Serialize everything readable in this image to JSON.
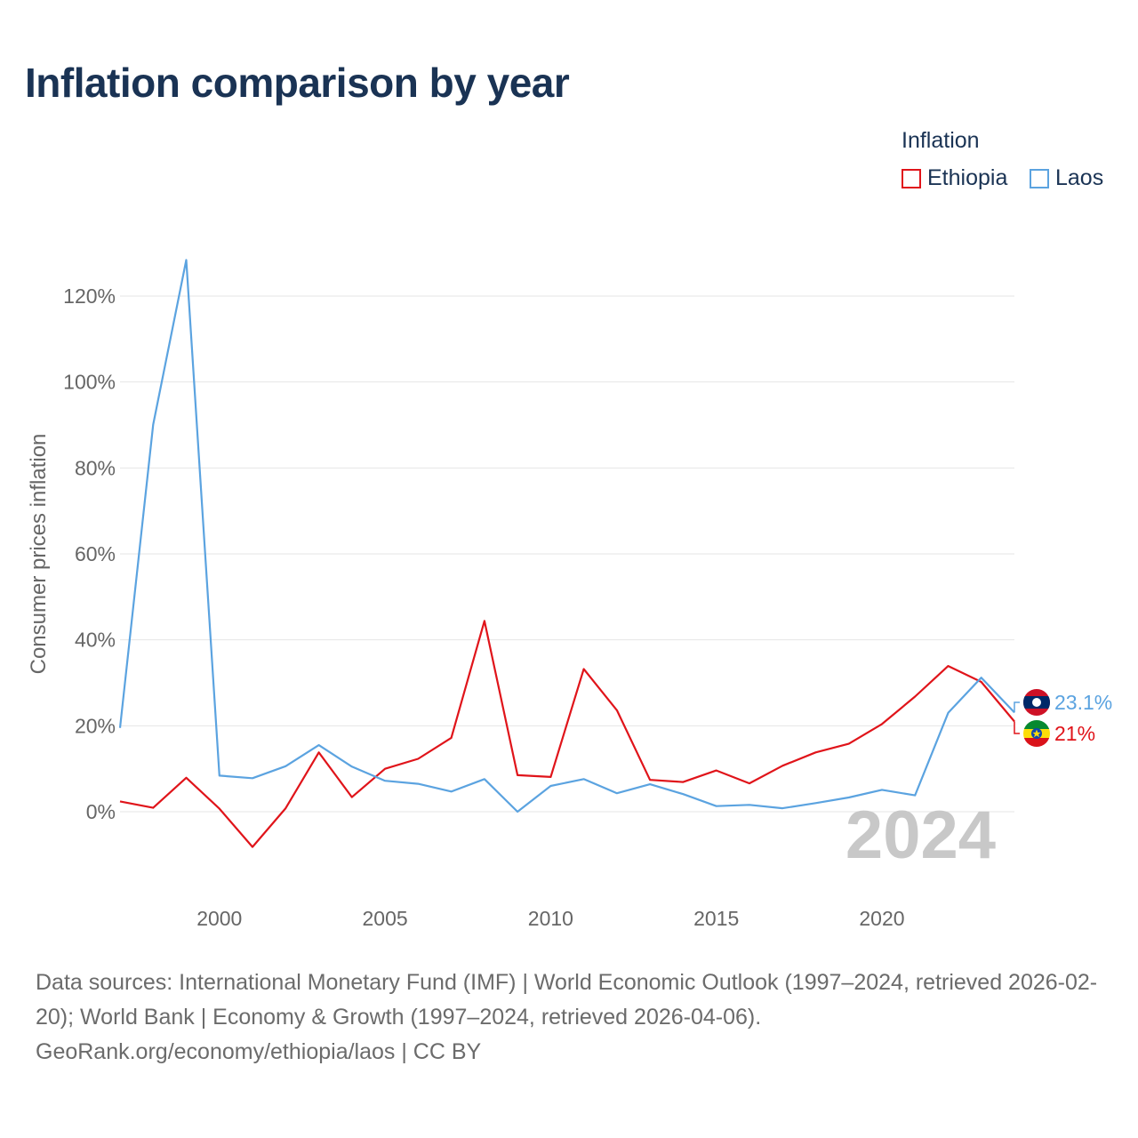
{
  "title": "Inflation comparison by year",
  "legend": {
    "title": "Inflation",
    "items": [
      {
        "label": "Ethiopia",
        "color": "#e0141a"
      },
      {
        "label": "Laos",
        "color": "#5ba3e0"
      }
    ]
  },
  "chart_data": {
    "type": "line",
    "title": "Inflation comparison by year",
    "xlabel": "",
    "ylabel": "Consumer prices inflation",
    "xlim": [
      1997,
      2024
    ],
    "ylim": [
      -20,
      140
    ],
    "x_ticks": [
      2000,
      2005,
      2010,
      2015,
      2020
    ],
    "y_ticks": [
      0,
      20,
      40,
      60,
      80,
      100,
      120
    ],
    "y_tick_labels": [
      "0%",
      "20%",
      "40%",
      "60%",
      "80%",
      "100%",
      "120%"
    ],
    "grid": true,
    "legend_position": "top-right",
    "x": [
      1997,
      1998,
      1999,
      2000,
      2001,
      2002,
      2003,
      2004,
      2005,
      2006,
      2007,
      2008,
      2009,
      2010,
      2011,
      2012,
      2013,
      2014,
      2015,
      2016,
      2017,
      2018,
      2019,
      2020,
      2021,
      2022,
      2023,
      2024
    ],
    "series": [
      {
        "name": "Ethiopia",
        "color": "#e0141a",
        "values": [
          2.4,
          0.9,
          7.9,
          0.7,
          -8.2,
          0.8,
          13.8,
          3.4,
          10.0,
          12.3,
          17.2,
          44.4,
          8.5,
          8.1,
          33.2,
          23.6,
          7.4,
          6.9,
          9.6,
          6.6,
          10.7,
          13.8,
          15.8,
          20.4,
          26.8,
          33.9,
          30.2,
          21.0
        ],
        "end_label": "21%"
      },
      {
        "name": "Laos",
        "color": "#5ba3e0",
        "values": [
          19.5,
          90.1,
          128.4,
          8.4,
          7.8,
          10.6,
          15.5,
          10.5,
          7.2,
          6.5,
          4.7,
          7.6,
          0.0,
          6.0,
          7.6,
          4.3,
          6.4,
          4.1,
          1.3,
          1.6,
          0.8,
          2.0,
          3.3,
          5.1,
          3.8,
          23.0,
          31.2,
          23.1
        ],
        "end_label": "23.1%"
      }
    ],
    "year_watermark": "2024"
  },
  "footer": {
    "sources": "Data sources: International Monetary Fund (IMF) | World Economic Outlook (1997–2024, retrieved 2026-02-20); World Bank | Economy & Growth (1997–2024, retrieved 2026-04-06).",
    "attribution": "GeoRank.org/economy/ethiopia/laos | CC BY"
  }
}
